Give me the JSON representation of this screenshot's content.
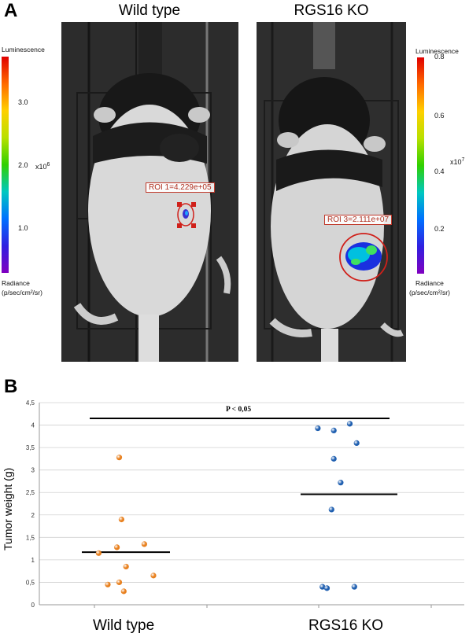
{
  "panel_a": {
    "letter": "A",
    "left_title": "Wild type",
    "right_title": "RGS16 KO",
    "left_colorbar": {
      "top_label": "Luminescence",
      "ticks": [
        "3.0",
        "2.0",
        "1.0"
      ],
      "multiplier": "x10",
      "exponent": "6",
      "bottom_label_1": "Radiance",
      "bottom_label_2": "(p/sec/cm²/sr)"
    },
    "right_colorbar": {
      "top_label": "Luminescence",
      "ticks": [
        "0.8",
        "0.6",
        "0.4",
        "0.2"
      ],
      "multiplier": "x10",
      "exponent": "7",
      "bottom_label_1": "Radiance",
      "bottom_label_2": "(p/sec/cm²/sr)"
    },
    "roi_left": "ROI 1=4.229e+05",
    "roi_right": "ROI 3=2.111e+07"
  },
  "panel_b": {
    "letter": "B",
    "chart_data": {
      "type": "scatter",
      "ylabel": "Tumor weight (g)",
      "categories": [
        "Wild type",
        "RGS16 KO"
      ],
      "ylim": [
        0,
        4.5
      ],
      "yticks": [
        "0",
        "0,5",
        "1",
        "1,5",
        "2",
        "2,5",
        "3",
        "3,5",
        "4",
        "4,5"
      ],
      "significance": "P < 0,05",
      "series": [
        {
          "name": "Wild type",
          "color": "#e8801e",
          "points": [
            [
              -0.7,
              1.15
            ],
            [
              -0.5,
              0.45
            ],
            [
              -0.3,
              1.28
            ],
            [
              -0.25,
              0.5
            ],
            [
              -0.1,
              0.85
            ],
            [
              -0.15,
              0.3
            ],
            [
              0.3,
              1.35
            ],
            [
              0.5,
              0.65
            ],
            [
              -0.2,
              1.9
            ],
            [
              -0.25,
              3.28
            ]
          ],
          "mean": 1.17
        },
        {
          "name": "RGS16 KO",
          "color": "#1f5fb0",
          "points": [
            [
              -0.45,
              3.93
            ],
            [
              -0.1,
              3.88
            ],
            [
              0.25,
              4.03
            ],
            [
              0.4,
              3.6
            ],
            [
              -0.1,
              3.25
            ],
            [
              0.05,
              2.72
            ],
            [
              -0.15,
              2.12
            ],
            [
              -0.35,
              0.4
            ],
            [
              -0.25,
              0.37
            ],
            [
              0.35,
              0.4
            ]
          ],
          "mean": 2.46
        }
      ]
    }
  }
}
